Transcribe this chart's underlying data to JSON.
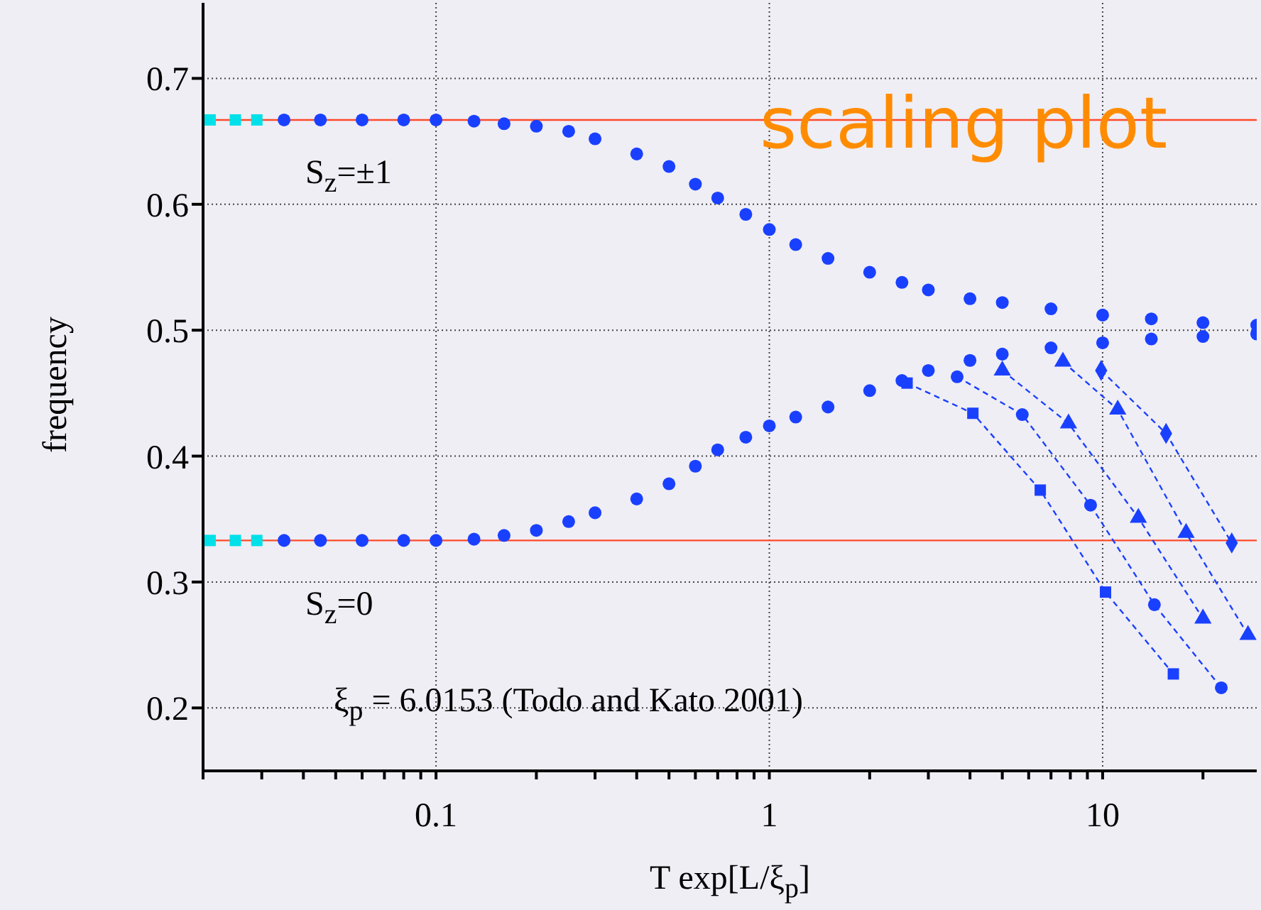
{
  "chart_data": {
    "type": "scatter",
    "xlabel": "T exp[L/ξ$_{p}$]",
    "ylabel": "frequency",
    "annotations": [
      "scaling plot",
      "S$_{z}$=±1",
      "S$_{z}$=0",
      "ξ$_{p}$ = 6.0153 (Todo and Kato 2001)"
    ],
    "log": "x",
    "xlim": [
      0.02,
      29
    ],
    "ylim": [
      0.15,
      0.76
    ],
    "xticks": [
      {
        "value": 0.02,
        "label": null
      },
      {
        "value": 0.03,
        "label": null
      },
      {
        "value": 0.04,
        "label": null
      },
      {
        "value": 0.05,
        "label": null
      },
      {
        "value": 0.06,
        "label": null
      },
      {
        "value": 0.07,
        "label": null
      },
      {
        "value": 0.08,
        "label": null
      },
      {
        "value": 0.09,
        "label": null
      },
      0.1,
      {
        "value": 0.2,
        "label": null
      },
      {
        "value": 0.3,
        "label": null
      },
      {
        "value": 0.4,
        "label": null
      },
      {
        "value": 0.5,
        "label": null
      },
      {
        "value": 0.6,
        "label": null
      },
      {
        "value": 0.7,
        "label": null
      },
      {
        "value": 0.8,
        "label": null
      },
      {
        "value": 0.9,
        "label": null
      },
      1,
      {
        "value": 2,
        "label": null
      },
      {
        "value": 3,
        "label": null
      },
      {
        "value": 4,
        "label": null
      },
      {
        "value": 5,
        "label": null
      },
      {
        "value": 6,
        "label": null
      },
      {
        "value": 7,
        "label": null
      },
      {
        "value": 8,
        "label": null
      },
      {
        "value": 9,
        "label": null
      },
      10,
      {
        "value": 20,
        "label": null
      }
    ],
    "yticks": [
      0.2,
      0.3,
      0.4,
      0.5,
      0.6,
      0.7
    ],
    "grid": true,
    "legend": false,
    "ref_lines": [
      {
        "axis": "y",
        "value": 0.667,
        "color": "#ff4a2a"
      },
      {
        "axis": "y",
        "value": 0.333,
        "color": "#ff4a2a"
      }
    ],
    "series": [
      {
        "color": "#00e0e8",
        "marker": "square",
        "x": [
          0.021,
          0.025,
          0.029,
          0.021,
          0.025,
          0.029
        ],
        "values": [
          0.667,
          0.667,
          0.667,
          0.333,
          0.333,
          0.333
        ]
      },
      {
        "color": "#1a40ff",
        "marker": "circle",
        "x": [
          0.035,
          0.045,
          0.06,
          0.08,
          0.1,
          0.13,
          0.16,
          0.2,
          0.25,
          0.3,
          0.4,
          0.5,
          0.6,
          0.7,
          0.85,
          1,
          1.2,
          1.5,
          2,
          2.5,
          3,
          4,
          5,
          7,
          10,
          14,
          20,
          29
        ],
        "values": [
          0.667,
          0.667,
          0.667,
          0.667,
          0.667,
          0.666,
          0.664,
          0.662,
          0.658,
          0.652,
          0.64,
          0.63,
          0.616,
          0.605,
          0.592,
          0.58,
          0.568,
          0.557,
          0.546,
          0.538,
          0.532,
          0.525,
          0.522,
          0.517,
          0.512,
          0.509,
          0.506,
          0.504
        ]
      },
      {
        "color": "#1a40ff",
        "marker": "circle",
        "x": [
          0.035,
          0.045,
          0.06,
          0.08,
          0.1,
          0.13,
          0.16,
          0.2,
          0.25,
          0.3,
          0.4,
          0.5,
          0.6,
          0.7,
          0.85,
          1,
          1.2,
          1.5,
          2,
          2.5,
          3,
          4,
          5,
          7,
          10,
          14,
          20,
          29
        ],
        "values": [
          0.333,
          0.333,
          0.333,
          0.333,
          0.333,
          0.334,
          0.337,
          0.341,
          0.348,
          0.355,
          0.366,
          0.378,
          0.392,
          0.405,
          0.415,
          0.424,
          0.431,
          0.439,
          0.452,
          0.46,
          0.468,
          0.476,
          0.481,
          0.486,
          0.49,
          0.493,
          0.495,
          0.497
        ]
      },
      {
        "type": "line",
        "color": "#1a40ff",
        "marker": "square",
        "line_style": "dashed",
        "x": [
          2.59,
          4.08,
          6.5,
          10.2,
          16.3
        ],
        "values": [
          0.458,
          0.434,
          0.373,
          0.292,
          0.227
        ]
      },
      {
        "type": "line",
        "color": "#1a40ff",
        "marker": "circle",
        "line_style": "dashed",
        "x": [
          3.66,
          5.74,
          9.2,
          14.3,
          22.7
        ],
        "values": [
          0.463,
          0.433,
          0.361,
          0.282,
          0.216
        ]
      },
      {
        "type": "line",
        "color": "#1a40ff",
        "marker": "triangle",
        "line_style": "dashed",
        "x": [
          5.0,
          7.9,
          12.8,
          20
        ],
        "values": [
          0.468,
          0.426,
          0.351,
          0.271
        ]
      },
      {
        "type": "line",
        "color": "#1a40ff",
        "marker": "triangle",
        "line_style": "dashed",
        "x": [
          7.6,
          11.1,
          17.8,
          27.3
        ],
        "values": [
          0.475,
          0.437,
          0.339,
          0.258
        ]
      },
      {
        "type": "line",
        "color": "#1a40ff",
        "marker": "diamond",
        "line_style": "dashed",
        "x": [
          9.9,
          15.5,
          24.4
        ],
        "values": [
          0.468,
          0.418,
          0.331
        ]
      }
    ]
  }
}
